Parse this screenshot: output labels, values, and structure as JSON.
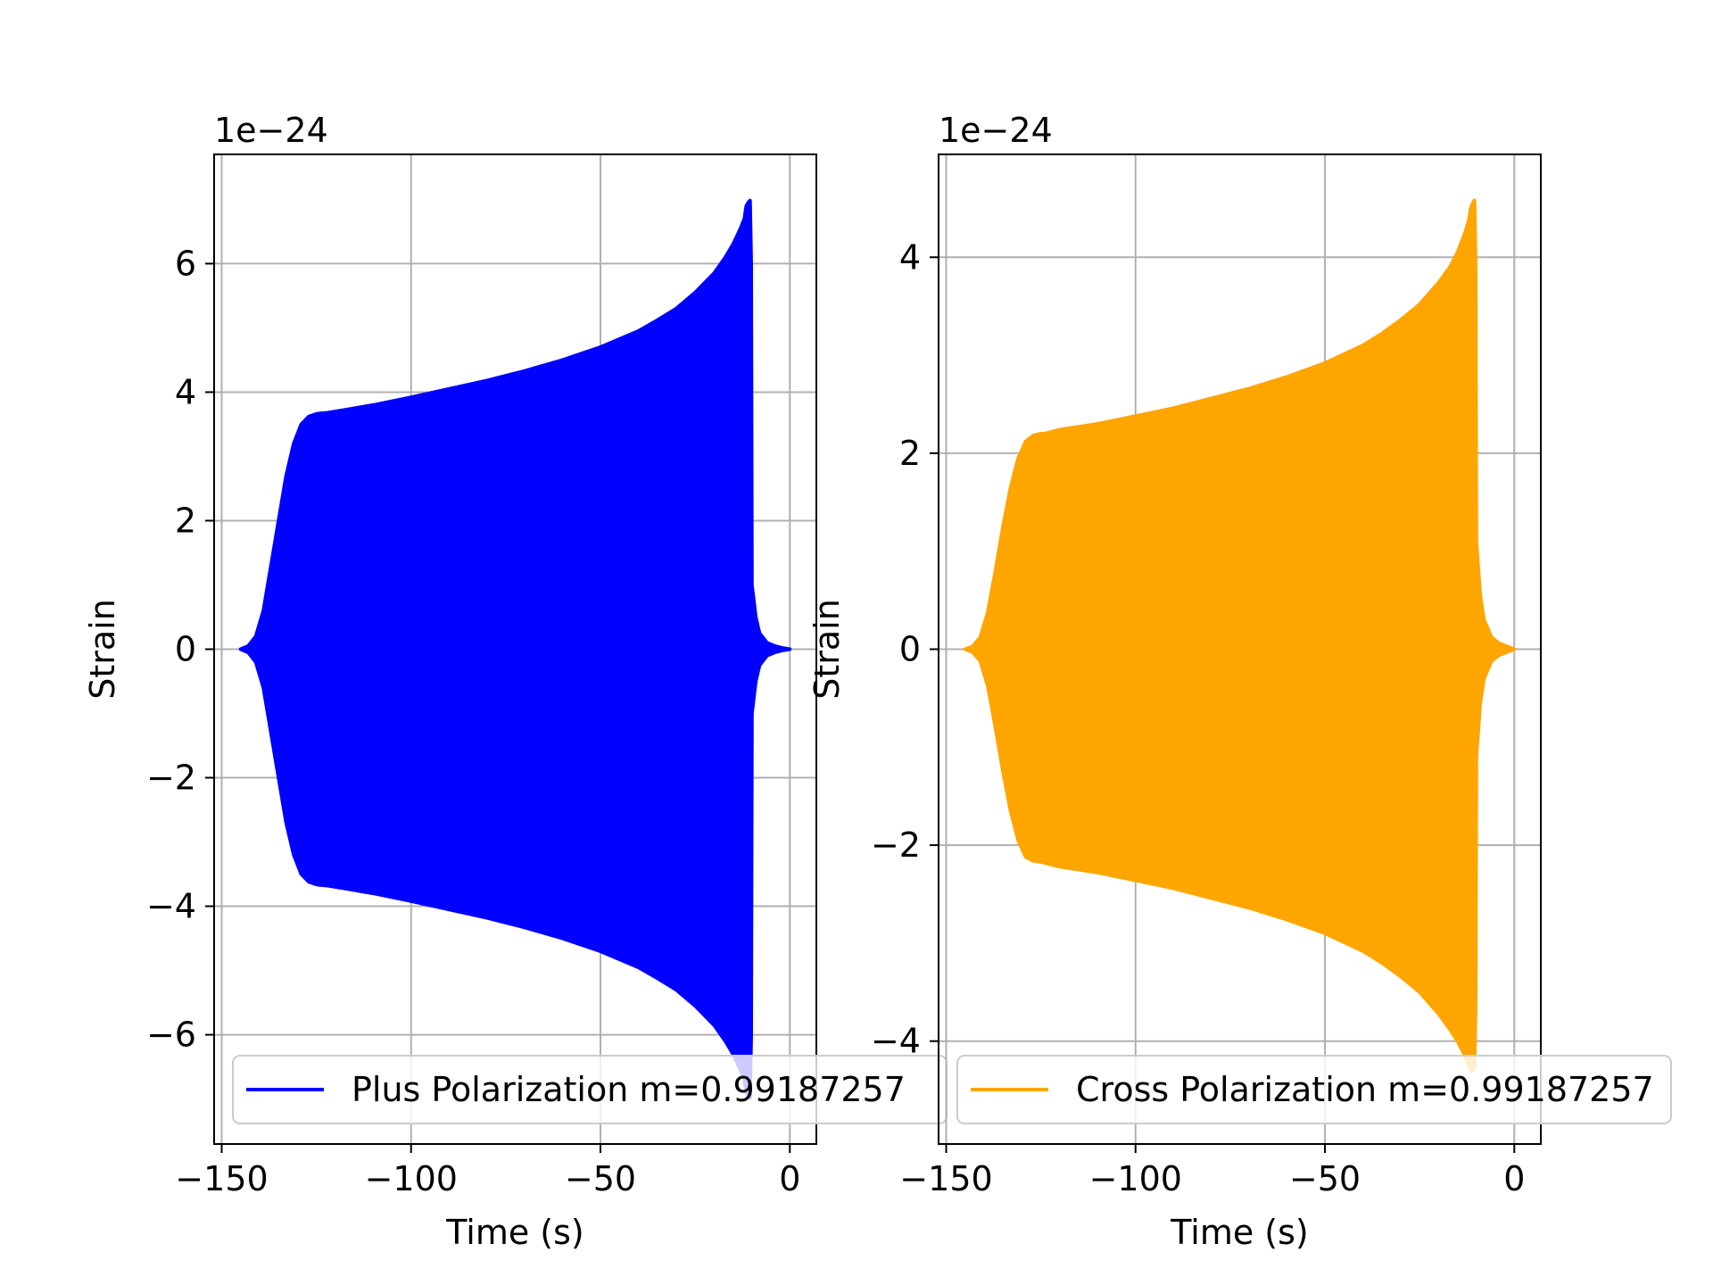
{
  "chart_data": [
    {
      "type": "line",
      "xlabel": "Time (s)",
      "ylabel": "Strain",
      "offset_text": "1e−24",
      "xlim": [
        -152,
        7
      ],
      "ylim": [
        -7.7,
        7.7
      ],
      "xticks": [
        -150,
        -100,
        -50,
        0
      ],
      "xtick_labels": [
        "−150",
        "−100",
        "−50",
        "0"
      ],
      "yticks": [
        -6,
        -4,
        -2,
        0,
        2,
        4,
        6
      ],
      "ytick_labels": [
        "−6",
        "−4",
        "−2",
        "0",
        "2",
        "4",
        "6"
      ],
      "grid": true,
      "legend": {
        "placement": "lower-left",
        "entries": [
          "Plus Polarization m=0.99187257"
        ]
      },
      "series": [
        {
          "name": "Plus Polarization m=0.99187257",
          "color": "#0000ff",
          "envelope": {
            "time": [
              -145,
              -143,
              -141,
              -139,
              -137,
              -135,
              -133,
              -131,
              -129,
              -127,
              -125,
              -124,
              -122,
              -120,
              -110,
              -100,
              -90,
              -80,
              -70,
              -60,
              -50,
              -40,
              -35,
              -30,
              -25,
              -20,
              -17,
              -15,
              -13,
              -12,
              -11.5,
              -11,
              -10.5,
              -10.2,
              -10,
              -9,
              -8,
              -6,
              -4,
              -2,
              0
            ],
            "upper": [
              0.0,
              0.05,
              0.2,
              0.6,
              1.3,
              2.0,
              2.7,
              3.2,
              3.5,
              3.62,
              3.66,
              3.67,
              3.68,
              3.7,
              3.8,
              3.92,
              4.05,
              4.18,
              4.33,
              4.5,
              4.7,
              4.95,
              5.12,
              5.3,
              5.55,
              5.85,
              6.1,
              6.3,
              6.55,
              6.7,
              6.9,
              6.95,
              6.98,
              6.0,
              1.0,
              0.5,
              0.25,
              0.1,
              0.05,
              0.02,
              0.0
            ],
            "lower": [
              0.0,
              -0.05,
              -0.2,
              -0.6,
              -1.3,
              -2.0,
              -2.7,
              -3.2,
              -3.5,
              -3.62,
              -3.66,
              -3.67,
              -3.68,
              -3.7,
              -3.8,
              -3.92,
              -4.05,
              -4.18,
              -4.33,
              -4.5,
              -4.7,
              -4.95,
              -5.12,
              -5.3,
              -5.55,
              -5.85,
              -6.1,
              -6.3,
              -6.55,
              -6.7,
              -6.9,
              -6.95,
              -6.98,
              -6.0,
              -1.0,
              -0.5,
              -0.25,
              -0.1,
              -0.05,
              -0.02,
              0.0
            ]
          }
        }
      ]
    },
    {
      "type": "line",
      "xlabel": "Time (s)",
      "ylabel": "Strain",
      "offset_text": "1e−24",
      "xlim": [
        -152,
        7
      ],
      "ylim": [
        -5.05,
        5.05
      ],
      "xticks": [
        -150,
        -100,
        -50,
        0
      ],
      "xtick_labels": [
        "−150",
        "−100",
        "−50",
        "0"
      ],
      "yticks": [
        -4,
        -2,
        0,
        2,
        4
      ],
      "ytick_labels": [
        "−4",
        "−2",
        "0",
        "2",
        "4"
      ],
      "grid": true,
      "legend": {
        "placement": "lower-left",
        "entries": [
          "Cross Polarization m=0.99187257"
        ]
      },
      "series": [
        {
          "name": "Cross Polarization m=0.99187257",
          "color": "#ffa500",
          "envelope": {
            "time": [
              -145,
              -143,
              -141,
              -139,
              -137,
              -135,
              -133,
              -131,
              -129,
              -127,
              -125,
              -124,
              -122,
              -120,
              -110,
              -100,
              -90,
              -80,
              -70,
              -60,
              -50,
              -40,
              -35,
              -30,
              -25,
              -20,
              -17,
              -15,
              -13,
              -12,
              -11.5,
              -11,
              -10.5,
              -10.2,
              -10,
              -9,
              -8,
              -6,
              -4,
              -2,
              0
            ],
            "upper": [
              0.0,
              0.03,
              0.12,
              0.38,
              0.8,
              1.25,
              1.65,
              1.95,
              2.12,
              2.18,
              2.2,
              2.2,
              2.22,
              2.24,
              2.3,
              2.38,
              2.46,
              2.56,
              2.66,
              2.78,
              2.92,
              3.1,
              3.22,
              3.36,
              3.52,
              3.74,
              3.9,
              4.05,
              4.25,
              4.38,
              4.5,
              4.55,
              4.58,
              3.9,
              1.1,
              0.55,
              0.3,
              0.12,
              0.06,
              0.03,
              0.0
            ],
            "lower": [
              0.0,
              -0.03,
              -0.12,
              -0.38,
              -0.8,
              -1.25,
              -1.65,
              -1.95,
              -2.12,
              -2.16,
              -2.17,
              -2.18,
              -2.2,
              -2.22,
              -2.28,
              -2.36,
              -2.44,
              -2.54,
              -2.64,
              -2.76,
              -2.9,
              -3.08,
              -3.2,
              -3.34,
              -3.5,
              -3.72,
              -3.88,
              -4.0,
              -4.15,
              -4.25,
              -4.3,
              -4.3,
              -4.28,
              -3.6,
              -1.1,
              -0.55,
              -0.3,
              -0.12,
              -0.06,
              -0.03,
              0.0
            ]
          }
        }
      ]
    }
  ]
}
